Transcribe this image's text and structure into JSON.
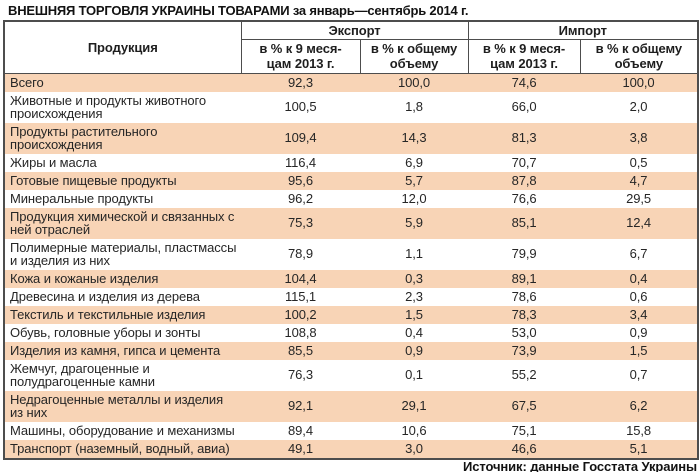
{
  "title": {
    "main": "ВНЕШНЯЯ ТОРГОВЛЯ УКРАИНЫ ТОВАРАМИ",
    "period": " за январь—сентябрь 2014 г."
  },
  "source": "Источник: данные Госстата Украины",
  "colors": {
    "row_accent": "#f8d4b6",
    "border": "#4d4d4d",
    "text": "#262626"
  },
  "table": {
    "product_header": "Продукция",
    "group_export": "Экспорт",
    "group_import": "Импорт",
    "sub_pct_2013": "в % к 9 меся-\nцам 2013 г.",
    "sub_share": "в % к общему\nобъему"
  },
  "chart_data": {
    "type": "table",
    "title": "ВНЕШНЯЯ ТОРГОВЛЯ УКРАИНЫ ТОВАРАМИ за январь—сентябрь 2014 г.",
    "column_groups": [
      "Экспорт",
      "Импорт"
    ],
    "columns": [
      "Продукция",
      "Экспорт: в % к 9 месяцам 2013 г.",
      "Экспорт: в % к общему объему",
      "Импорт: в % к 9 месяцам 2013 г.",
      "Импорт: в % к общему объему"
    ],
    "rows": [
      {
        "name": "Всего",
        "export_vs_2013": "92,3",
        "export_share": "100,0",
        "import_vs_2013": "74,6",
        "import_share": "100,0"
      },
      {
        "name": "Животные и продукты животного\nпроисхождения",
        "export_vs_2013": "100,5",
        "export_share": "1,8",
        "import_vs_2013": "66,0",
        "import_share": "2,0"
      },
      {
        "name": "Продукты растительного\nпроисхождения",
        "export_vs_2013": "109,4",
        "export_share": "14,3",
        "import_vs_2013": "81,3",
        "import_share": "3,8"
      },
      {
        "name": "Жиры и масла",
        "export_vs_2013": "116,4",
        "export_share": "6,9",
        "import_vs_2013": "70,7",
        "import_share": "0,5"
      },
      {
        "name": "Готовые пищевые продукты",
        "export_vs_2013": "95,6",
        "export_share": "5,7",
        "import_vs_2013": "87,8",
        "import_share": "4,7"
      },
      {
        "name": "Минеральные продукты",
        "export_vs_2013": "96,2",
        "export_share": "12,0",
        "import_vs_2013": "76,6",
        "import_share": "29,5"
      },
      {
        "name": "Продукция химической и связанных с\nней отраслей",
        "export_vs_2013": "75,3",
        "export_share": "5,9",
        "import_vs_2013": "85,1",
        "import_share": "12,4"
      },
      {
        "name": "Полимерные материалы, пластмассы\nи изделия из них",
        "export_vs_2013": "78,9",
        "export_share": "1,1",
        "import_vs_2013": "79,9",
        "import_share": "6,7"
      },
      {
        "name": "Кожа и кожаные изделия",
        "export_vs_2013": "104,4",
        "export_share": "0,3",
        "import_vs_2013": "89,1",
        "import_share": "0,4"
      },
      {
        "name": "Древесина и изделия из дерева",
        "export_vs_2013": "115,1",
        "export_share": "2,3",
        "import_vs_2013": "78,6",
        "import_share": "0,6"
      },
      {
        "name": "Текстиль и текстильные изделия",
        "export_vs_2013": "100,2",
        "export_share": "1,5",
        "import_vs_2013": "78,3",
        "import_share": "3,4"
      },
      {
        "name": "Обувь, головные уборы и зонты",
        "export_vs_2013": "108,8",
        "export_share": "0,4",
        "import_vs_2013": "53,0",
        "import_share": "0,9"
      },
      {
        "name": "Изделия из камня, гипса и цемента",
        "export_vs_2013": "85,5",
        "export_share": "0,9",
        "import_vs_2013": "73,9",
        "import_share": "1,5"
      },
      {
        "name": "Жемчуг, драгоценные и\nполудрагоценные камни",
        "export_vs_2013": "76,3",
        "export_share": "0,1",
        "import_vs_2013": "55,2",
        "import_share": "0,7"
      },
      {
        "name": "Недрагоценные металлы и изделия\nиз них",
        "export_vs_2013": "92,1",
        "export_share": "29,1",
        "import_vs_2013": "67,5",
        "import_share": "6,2"
      },
      {
        "name": "Машины, оборудование и механизмы",
        "export_vs_2013": "89,4",
        "export_share": "10,6",
        "import_vs_2013": "75,1",
        "import_share": "15,8"
      },
      {
        "name": "Транспорт (наземный, водный, авиа)",
        "export_vs_2013": "49,1",
        "export_share": "3,0",
        "import_vs_2013": "46,6",
        "import_share": "5,1"
      }
    ]
  }
}
